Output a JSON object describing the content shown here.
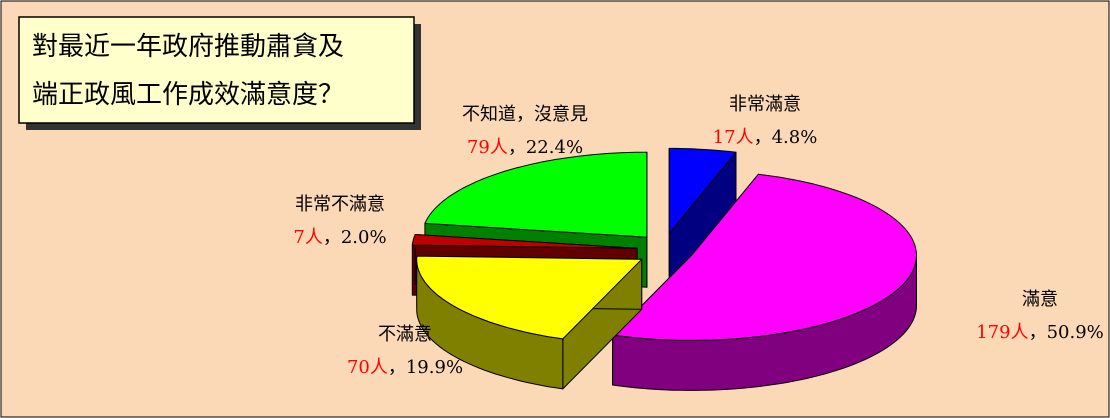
{
  "chart_data": {
    "type": "pie",
    "title": [
      "對最近一年政府推動肅貪及",
      "端正政風工作成效滿意度？"
    ],
    "categories": [
      "非常滿意",
      "滿意",
      "不滿意",
      "非常不滿意",
      "不知道，沒意見"
    ],
    "values": [
      4.8,
      50.9,
      19.9,
      2.0,
      22.4
    ],
    "value_labels": [
      "4.8%",
      "50.9%",
      "19.9%",
      "2.0%",
      "22.4%"
    ],
    "counts": [
      17,
      179,
      70,
      7,
      79
    ],
    "count_labels": [
      "17人",
      "179人",
      "70人",
      "7人",
      "79人"
    ],
    "separator": "，",
    "colors": [
      "#0000ff",
      "#ff00ff",
      "#ffff00",
      "#c00000",
      "#00ff00"
    ]
  }
}
